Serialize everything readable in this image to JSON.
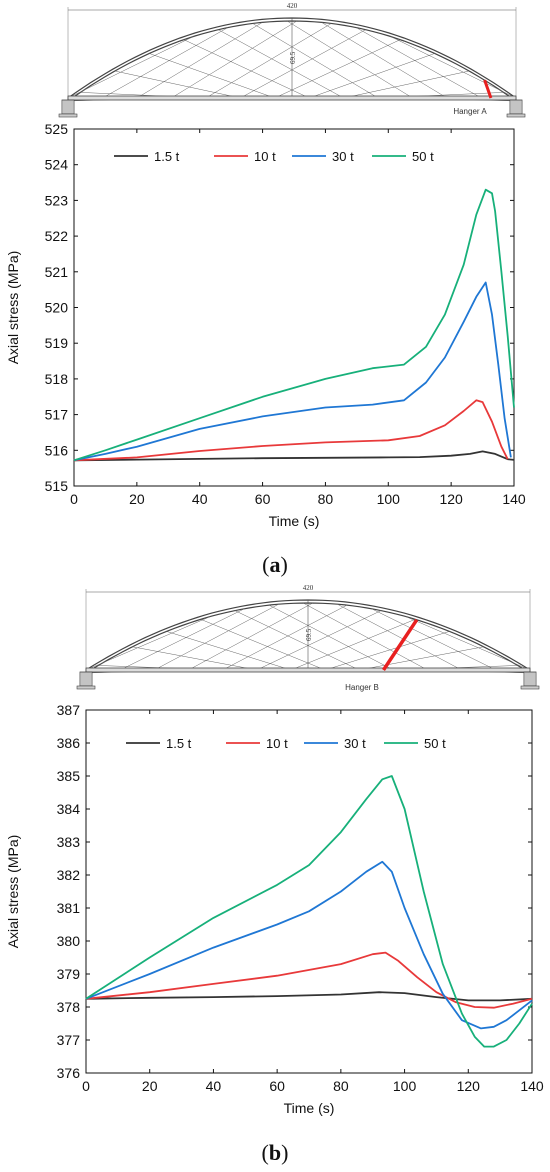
{
  "colors": {
    "1.5 t": "#333333",
    "10 t": "#e8393a",
    "30 t": "#1f77d4",
    "50 t": "#17b07a",
    "hanger_highlight": "#e82020"
  },
  "panels": [
    {
      "label_open": "(",
      "label_letter": "a",
      "label_close": ")",
      "bridge": {
        "span_label": "420",
        "rise_label": "69.5",
        "hanger_label": "Hanger A"
      }
    },
    {
      "label_open": "(",
      "label_letter": "b",
      "label_close": ")",
      "bridge": {
        "span_label": "420",
        "rise_label": "69.5",
        "hanger_label": "Hanger B"
      }
    }
  ],
  "chart_data": [
    {
      "type": "line",
      "xlabel": "Time (s)",
      "ylabel": "Axial stress (MPa)",
      "xlim": [
        0,
        140
      ],
      "ylim": [
        515,
        525
      ],
      "xticks": [
        0,
        20,
        40,
        60,
        80,
        100,
        120,
        140
      ],
      "yticks": [
        515,
        516,
        517,
        518,
        519,
        520,
        521,
        522,
        523,
        524,
        525
      ],
      "legend": "top, horizontal",
      "series": [
        {
          "name": "1.5 t",
          "x": [
            0,
            20,
            40,
            60,
            80,
            100,
            110,
            120,
            126,
            130,
            134,
            138,
            140
          ],
          "y": [
            515.72,
            515.74,
            515.76,
            515.78,
            515.79,
            515.8,
            515.81,
            515.85,
            515.9,
            515.97,
            515.9,
            515.75,
            515.73
          ]
        },
        {
          "name": "10 t",
          "x": [
            0,
            20,
            40,
            60,
            80,
            100,
            110,
            118,
            124,
            128,
            130,
            133,
            136,
            138
          ],
          "y": [
            515.72,
            515.8,
            515.98,
            516.12,
            516.22,
            516.28,
            516.4,
            516.7,
            517.1,
            517.4,
            517.35,
            516.8,
            516.1,
            515.75
          ]
        },
        {
          "name": "30 t",
          "x": [
            0,
            10,
            20,
            40,
            60,
            80,
            95,
            105,
            112,
            118,
            124,
            128,
            131,
            133,
            135,
            137,
            139
          ],
          "y": [
            515.72,
            515.9,
            516.1,
            516.6,
            516.95,
            517.2,
            517.28,
            517.4,
            517.9,
            518.6,
            519.6,
            520.3,
            520.7,
            519.8,
            518.4,
            516.9,
            515.8
          ]
        },
        {
          "name": "50 t",
          "x": [
            0,
            10,
            20,
            40,
            60,
            80,
            95,
            105,
            112,
            118,
            124,
            128,
            131,
            133,
            134,
            136,
            138,
            140
          ],
          "y": [
            515.72,
            516.0,
            516.3,
            516.9,
            517.5,
            518.0,
            518.3,
            518.4,
            518.9,
            519.8,
            521.2,
            522.6,
            523.3,
            523.2,
            522.7,
            521.0,
            519.2,
            517.2
          ]
        }
      ]
    },
    {
      "type": "line",
      "xlabel": "Time (s)",
      "ylabel": "Axial stress (MPa)",
      "xlim": [
        0,
        140
      ],
      "ylim": [
        376,
        387
      ],
      "xticks": [
        0,
        20,
        40,
        60,
        80,
        100,
        120,
        140
      ],
      "yticks": [
        376,
        377,
        378,
        379,
        380,
        381,
        382,
        383,
        384,
        385,
        386,
        387
      ],
      "legend": "top, horizontal",
      "series": [
        {
          "name": "1.5 t",
          "x": [
            0,
            20,
            40,
            60,
            80,
            92,
            100,
            110,
            120,
            130,
            140
          ],
          "y": [
            378.25,
            378.28,
            378.3,
            378.33,
            378.38,
            378.45,
            378.42,
            378.3,
            378.2,
            378.2,
            378.25
          ]
        },
        {
          "name": "10 t",
          "x": [
            0,
            20,
            40,
            60,
            80,
            90,
            94,
            98,
            104,
            110,
            116,
            122,
            128,
            134,
            140
          ],
          "y": [
            378.25,
            378.45,
            378.7,
            378.95,
            379.3,
            379.6,
            379.65,
            379.4,
            378.9,
            378.45,
            378.15,
            378.0,
            377.98,
            378.1,
            378.25
          ]
        },
        {
          "name": "30 t",
          "x": [
            0,
            20,
            40,
            60,
            70,
            80,
            88,
            93,
            96,
            100,
            106,
            112,
            118,
            124,
            128,
            132,
            136,
            140
          ],
          "y": [
            378.25,
            379.0,
            379.8,
            380.5,
            380.9,
            381.5,
            382.1,
            382.4,
            382.1,
            381.0,
            379.6,
            378.4,
            377.6,
            377.35,
            377.4,
            377.6,
            377.9,
            378.2
          ]
        },
        {
          "name": "50 t",
          "x": [
            0,
            20,
            40,
            60,
            70,
            80,
            88,
            93,
            96,
            100,
            106,
            112,
            118,
            122,
            125,
            128,
            132,
            136,
            140
          ],
          "y": [
            378.25,
            379.5,
            380.7,
            381.7,
            382.3,
            383.3,
            384.3,
            384.9,
            385.0,
            384.0,
            381.5,
            379.3,
            377.8,
            377.1,
            376.8,
            376.8,
            377.0,
            377.5,
            378.1
          ]
        }
      ]
    }
  ]
}
